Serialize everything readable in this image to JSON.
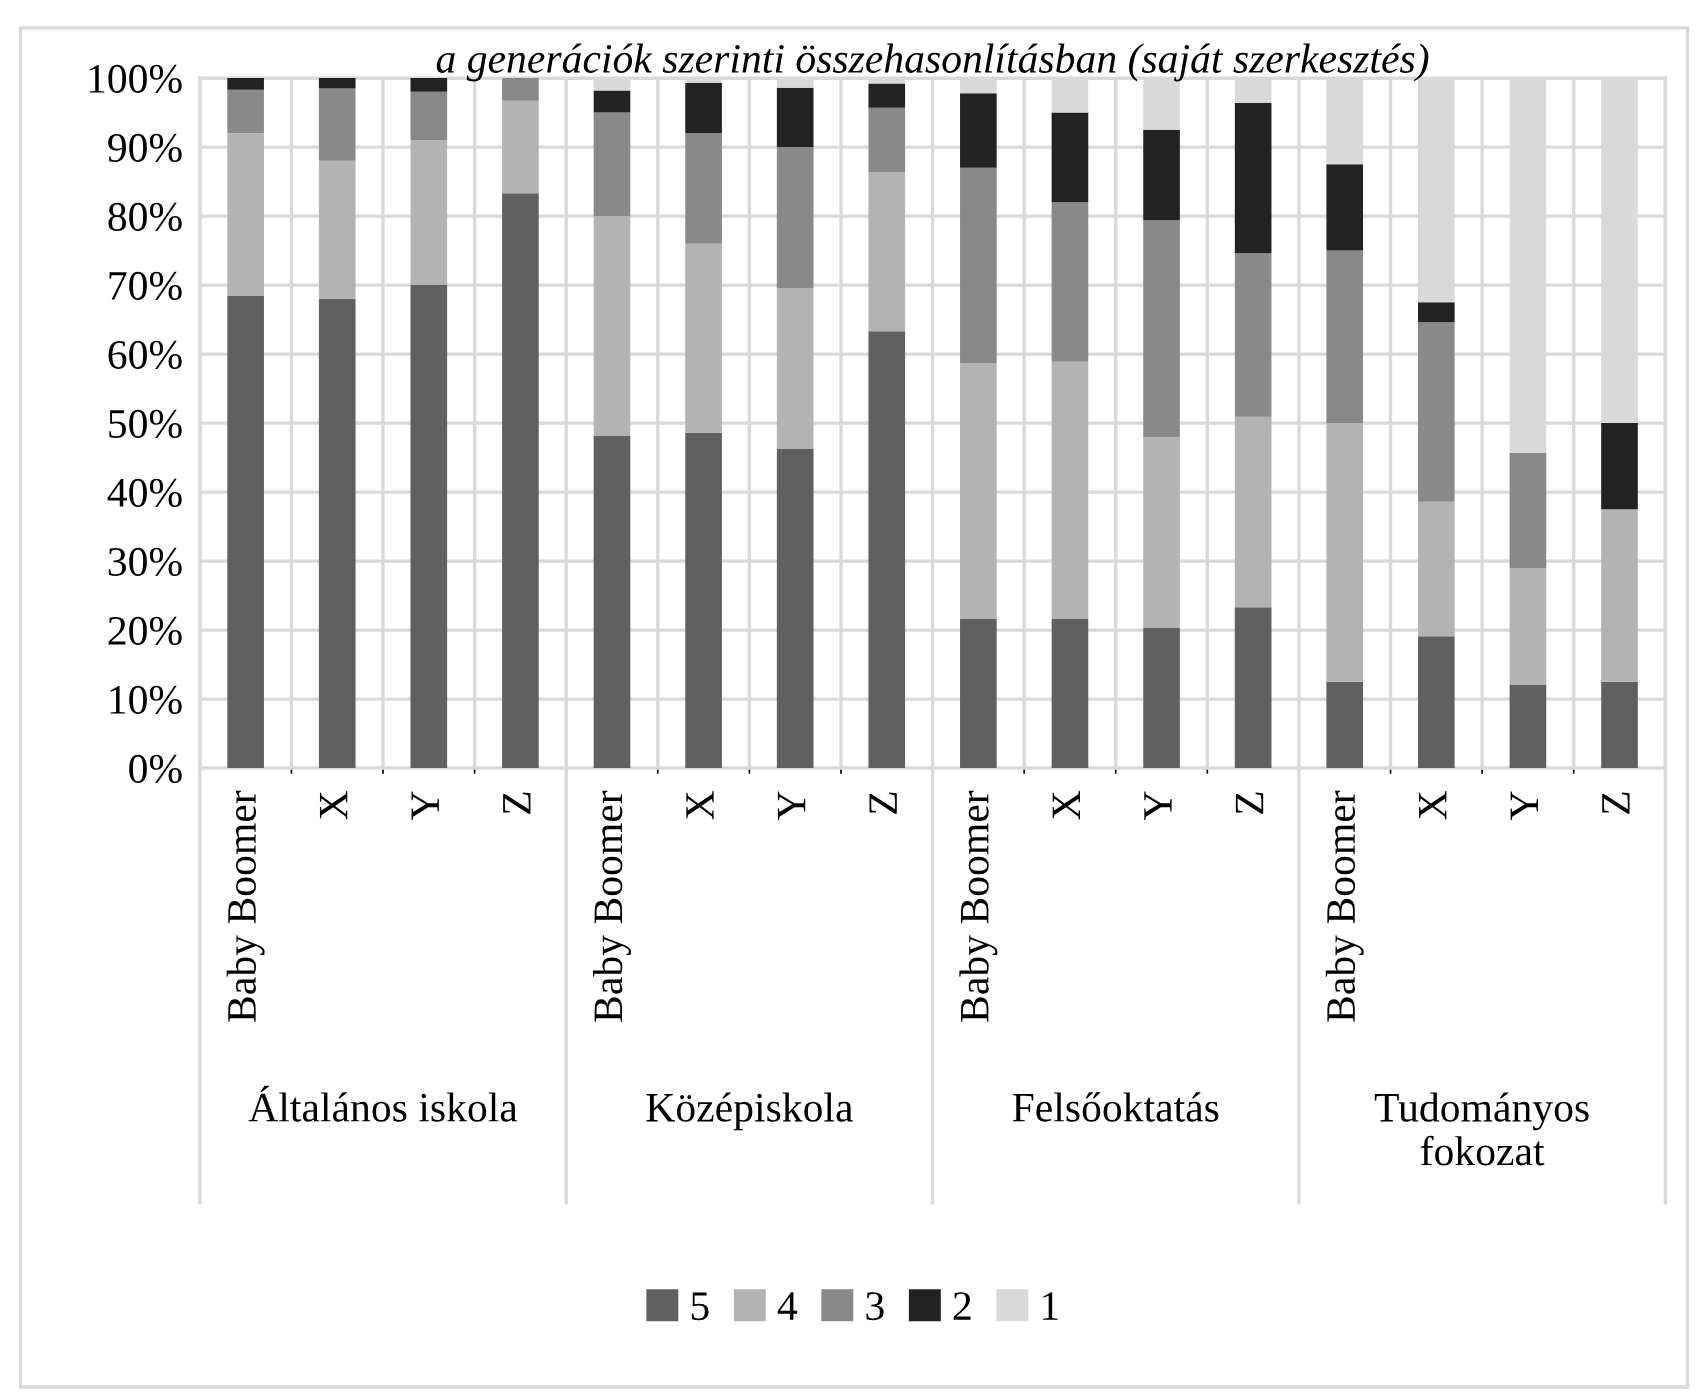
{
  "chart_data": {
    "type": "bar",
    "stacked": true,
    "title": "a generációk szerinti összehasonlításban (saját szerkesztés)",
    "categories": [
      "Baby Boomer",
      "X",
      "Y",
      "Z",
      "Baby Boomer",
      "X",
      "Y",
      "Z",
      "Baby Boomer",
      "X",
      "Y",
      "Z",
      "Baby Boomer",
      "X",
      "Y",
      "Z"
    ],
    "annotations": [
      "Általános iskola",
      "Középiskola",
      "Felsőoktatás",
      "Tudományos\nfokozat"
    ],
    "series": [
      {
        "name": "5",
        "color": "#606060",
        "values": [
          68.5,
          68,
          70,
          83.3,
          48.2,
          48.6,
          46.3,
          63.3,
          21.6,
          21.6,
          20.3,
          23.3,
          12.5,
          19.1,
          12.1,
          12.5
        ]
      },
      {
        "name": "4",
        "color": "#b3b3b3",
        "values": [
          23.5,
          20,
          21,
          13.4,
          31.8,
          27.4,
          23.2,
          23.1,
          37.1,
          37.3,
          27.7,
          27.6,
          37.5,
          19.5,
          16.9,
          25
        ]
      },
      {
        "name": "3",
        "color": "#898989",
        "values": [
          6.3,
          10.5,
          7,
          3.3,
          15,
          16,
          20.5,
          9.3,
          28.3,
          23.1,
          31.4,
          23.7,
          25,
          26,
          16.7,
          0
        ]
      },
      {
        "name": "2",
        "color": "#222222",
        "values": [
          1.7,
          1.5,
          2,
          0,
          3.2,
          7.3,
          8.6,
          3.5,
          10.8,
          13,
          13.1,
          21.8,
          12.5,
          2.9,
          0,
          12.5
        ]
      },
      {
        "name": "1",
        "color": "#d9d9d9",
        "values": [
          0,
          0,
          0,
          0,
          1.8,
          0.7,
          1.4,
          0.8,
          2.2,
          5,
          7.5,
          3.6,
          12.5,
          32.5,
          54.3,
          50
        ]
      }
    ],
    "ylim": [
      0,
      100
    ],
    "yticks": [
      {
        "value": 0,
        "label": "0%"
      },
      {
        "value": 10,
        "label": "10%"
      },
      {
        "value": 20,
        "label": "20%"
      },
      {
        "value": 30,
        "label": "30%"
      },
      {
        "value": 40,
        "label": "40%"
      },
      {
        "value": 50,
        "label": "50%"
      },
      {
        "value": 60,
        "label": "60%"
      },
      {
        "value": 70,
        "label": "70%"
      },
      {
        "value": 80,
        "label": "80%"
      },
      {
        "value": 90,
        "label": "90%"
      },
      {
        "value": 100,
        "label": "100%"
      }
    ],
    "grid": true,
    "legend": "bottom"
  }
}
